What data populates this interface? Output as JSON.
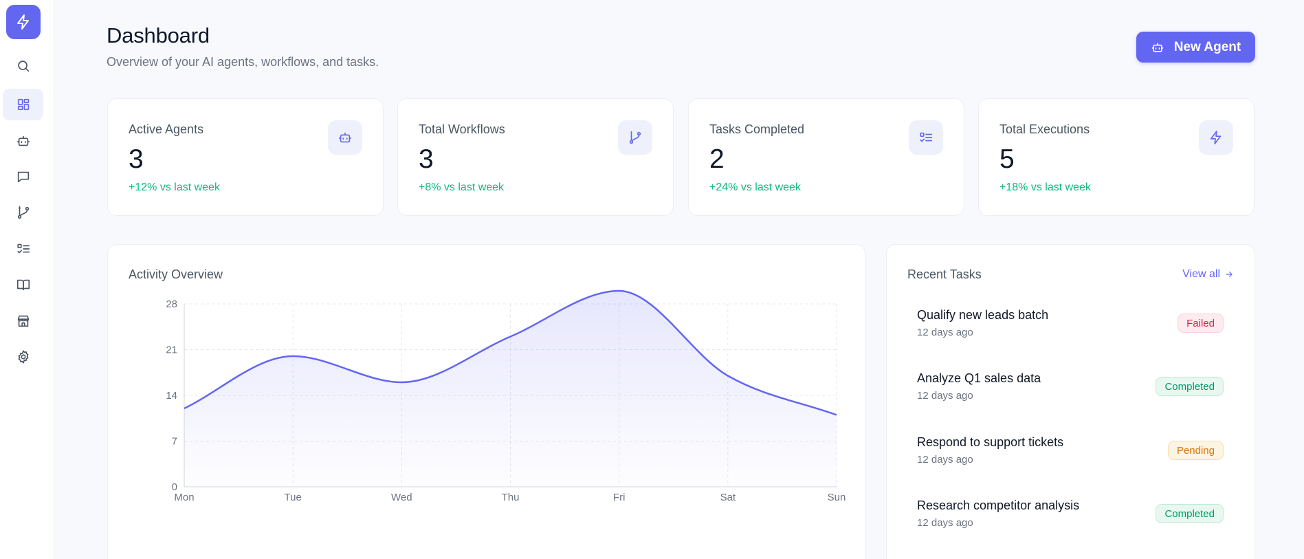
{
  "header": {
    "title": "Dashboard",
    "subtitle": "Overview of your AI agents, workflows, and tasks.",
    "new_agent_label": "New Agent"
  },
  "sidebar": {
    "items": [
      {
        "icon": "search-icon"
      },
      {
        "icon": "dashboard-icon",
        "active": true
      },
      {
        "icon": "bot-icon"
      },
      {
        "icon": "chat-icon"
      },
      {
        "icon": "workflow-icon"
      },
      {
        "icon": "tasks-icon"
      },
      {
        "icon": "book-icon"
      },
      {
        "icon": "store-icon"
      },
      {
        "icon": "gear-icon"
      }
    ]
  },
  "stats": [
    {
      "label": "Active Agents",
      "value": "3",
      "change": "+12% vs last week",
      "icon": "bot-icon"
    },
    {
      "label": "Total Workflows",
      "value": "3",
      "change": "+8% vs last week",
      "icon": "workflow-icon"
    },
    {
      "label": "Tasks Completed",
      "value": "2",
      "change": "+24% vs last week",
      "icon": "tasks-icon"
    },
    {
      "label": "Total Executions",
      "value": "5",
      "change": "+18% vs last week",
      "icon": "bolt-icon"
    }
  ],
  "activity": {
    "title": "Activity Overview"
  },
  "chart_data": {
    "type": "area",
    "categories": [
      "Mon",
      "Tue",
      "Wed",
      "Thu",
      "Fri",
      "Sat",
      "Sun"
    ],
    "values": [
      12,
      20,
      16,
      23,
      30,
      17,
      11
    ],
    "ylim": [
      0,
      28
    ],
    "yticks": [
      0,
      7,
      14,
      21,
      28
    ],
    "grid": true,
    "color": "#6366f1"
  },
  "recent_tasks": {
    "title": "Recent Tasks",
    "view_all_label": "View all",
    "items": [
      {
        "title": "Qualify new leads batch",
        "time": "12 days ago",
        "status": "Failed"
      },
      {
        "title": "Analyze Q1 sales data",
        "time": "12 days ago",
        "status": "Completed"
      },
      {
        "title": "Respond to support tickets",
        "time": "12 days ago",
        "status": "Pending"
      },
      {
        "title": "Research competitor analysis",
        "time": "12 days ago",
        "status": "Completed"
      }
    ]
  },
  "colors": {
    "accent": "#6366f1",
    "positive": "#10b981",
    "failed": "#e11d48",
    "completed": "#059669",
    "pending": "#d97706"
  }
}
